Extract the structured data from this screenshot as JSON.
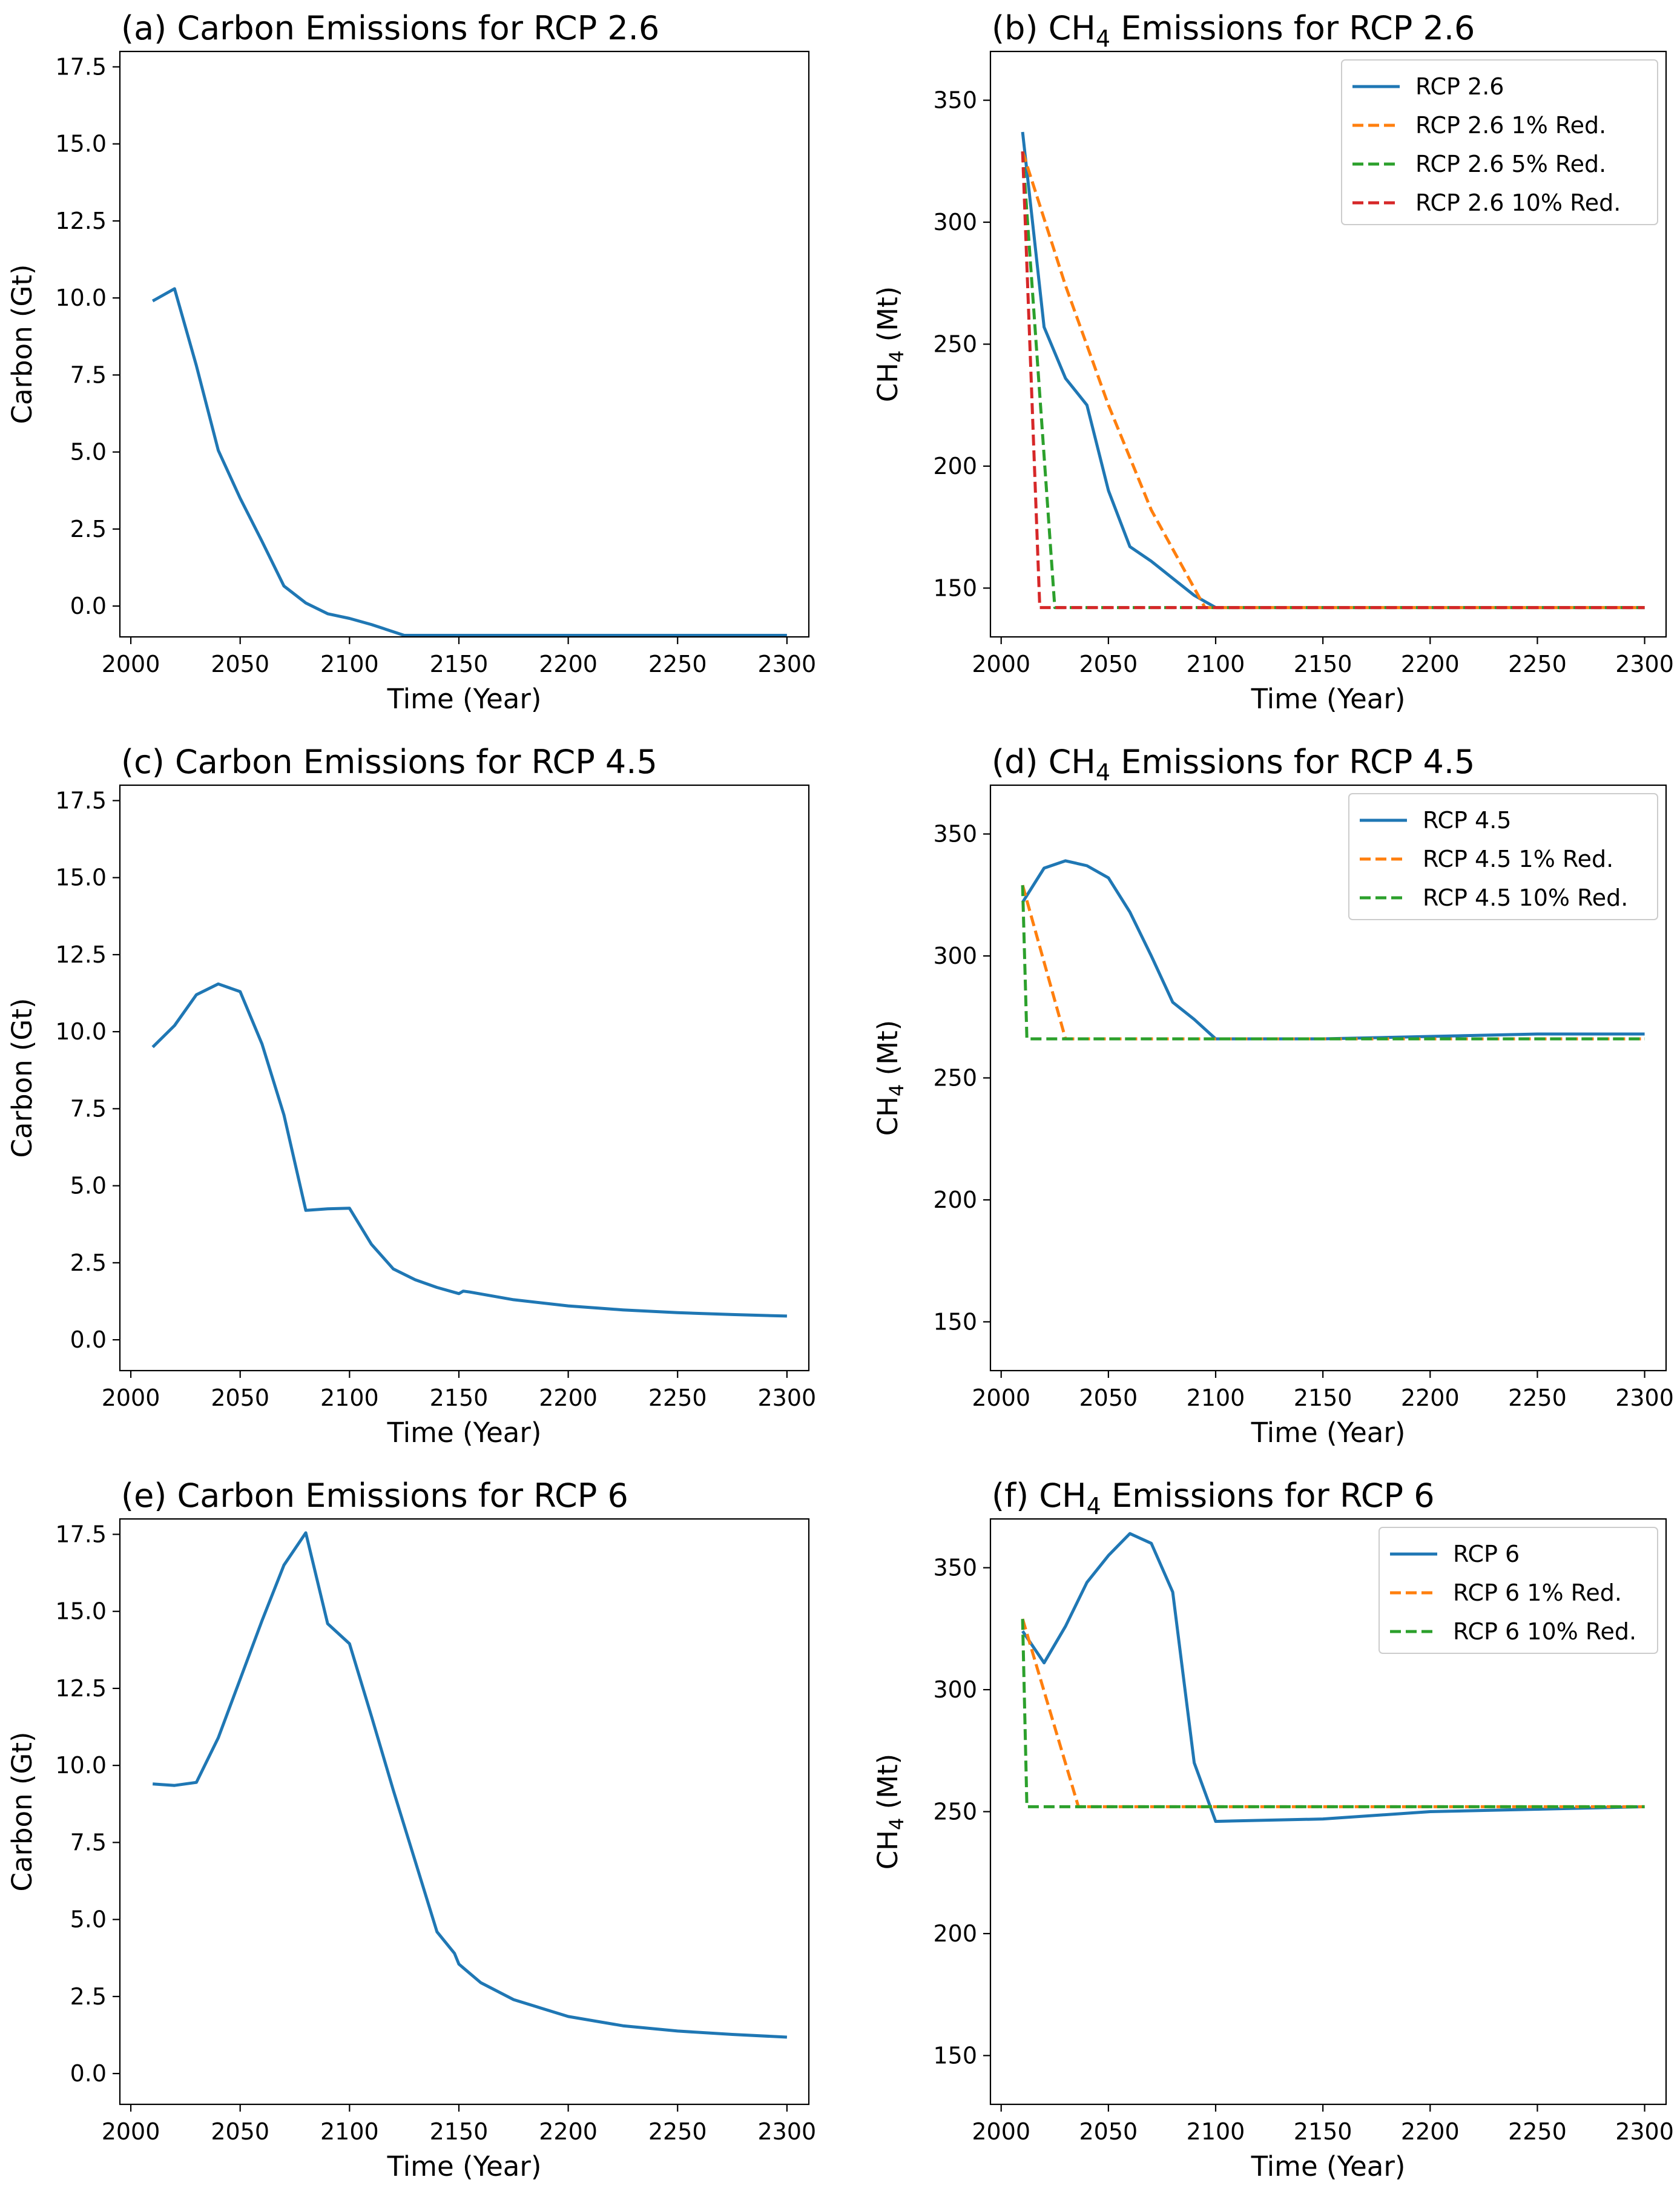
{
  "chart_data": [
    {
      "type": "line",
      "panel": "a",
      "title": "(a) Carbon Emissions for RCP 2.6",
      "title_main": "(a) Carbon Emissions for RCP 2.6",
      "xlabel": "Time (Year)",
      "ylabel": "Carbon (Gt)",
      "xlim": [
        1995,
        2310
      ],
      "ylim": [
        -1.0,
        18.0
      ],
      "xticks": [
        2000,
        2050,
        2100,
        2150,
        2200,
        2250,
        2300
      ],
      "yticks": [
        0.0,
        2.5,
        5.0,
        7.5,
        10.0,
        12.5,
        15.0,
        17.5
      ],
      "ytick_labels": [
        "0.0",
        "2.5",
        "5.0",
        "7.5",
        "10.0",
        "12.5",
        "15.0",
        "17.5"
      ],
      "legend": false,
      "series": [
        {
          "name": "RCP 2.6",
          "color": "#1f77b4",
          "style": "solid",
          "x": [
            2010,
            2020,
            2030,
            2040,
            2050,
            2060,
            2070,
            2080,
            2090,
            2100,
            2110,
            2125,
            2150,
            2200,
            2250,
            2300
          ],
          "y": [
            9.9,
            10.3,
            7.8,
            5.05,
            3.5,
            2.1,
            0.65,
            0.1,
            -0.25,
            -0.4,
            -0.6,
            -0.95,
            -0.95,
            -0.95,
            -0.95,
            -0.95
          ]
        }
      ]
    },
    {
      "type": "line",
      "panel": "b",
      "title": "(b) CH4 Emissions for RCP 2.6",
      "title_main": "(b) CH",
      "title_sub": "4",
      "title_rest": " Emissions for RCP 2.6",
      "xlabel": "Time (Year)",
      "ylabel": "CH4 (Mt)",
      "ylabel_main": "CH",
      "ylabel_sub": "4",
      "ylabel_rest": " (Mt)",
      "xlim": [
        1995,
        2310
      ],
      "ylim": [
        130,
        370
      ],
      "xticks": [
        2000,
        2050,
        2100,
        2150,
        2200,
        2250,
        2300
      ],
      "yticks": [
        150,
        200,
        250,
        300,
        350
      ],
      "ytick_labels": [
        "150",
        "200",
        "250",
        "300",
        "350"
      ],
      "legend": true,
      "legend_position": "upper right",
      "series": [
        {
          "name": "RCP 2.6",
          "color": "#1f77b4",
          "style": "solid",
          "x": [
            2010,
            2020,
            2030,
            2040,
            2050,
            2060,
            2070,
            2080,
            2090,
            2100,
            2150,
            2200,
            2250,
            2300
          ],
          "y": [
            337,
            257,
            236,
            225,
            190,
            167,
            161,
            154,
            147,
            142,
            142,
            142,
            142,
            142
          ]
        },
        {
          "name": "RCP 2.6 1% Red.",
          "color": "#ff7f0e",
          "style": "dashed",
          "x": [
            2010,
            2030,
            2050,
            2070,
            2095,
            2150,
            2200,
            2250,
            2300
          ],
          "y": [
            329,
            274,
            225,
            182,
            142,
            142,
            142,
            142,
            142
          ]
        },
        {
          "name": "RCP 2.6 5% Red.",
          "color": "#2ca02c",
          "style": "dashed",
          "x": [
            2010,
            2025,
            2050,
            2100,
            2150,
            2200,
            2250,
            2300
          ],
          "y": [
            329,
            142,
            142,
            142,
            142,
            142,
            142,
            142
          ]
        },
        {
          "name": "RCP 2.6 10% Red.",
          "color": "#d62728",
          "style": "dashed",
          "x": [
            2010,
            2018,
            2050,
            2100,
            2150,
            2200,
            2250,
            2300
          ],
          "y": [
            329,
            142,
            142,
            142,
            142,
            142,
            142,
            142
          ]
        }
      ]
    },
    {
      "type": "line",
      "panel": "c",
      "title": "(c) Carbon Emissions for RCP 4.5",
      "title_main": "(c) Carbon Emissions for RCP 4.5",
      "xlabel": "Time (Year)",
      "ylabel": "Carbon (Gt)",
      "xlim": [
        1995,
        2310
      ],
      "ylim": [
        -1.0,
        18.0
      ],
      "xticks": [
        2000,
        2050,
        2100,
        2150,
        2200,
        2250,
        2300
      ],
      "yticks": [
        0.0,
        2.5,
        5.0,
        7.5,
        10.0,
        12.5,
        15.0,
        17.5
      ],
      "ytick_labels": [
        "0.0",
        "2.5",
        "5.0",
        "7.5",
        "10.0",
        "12.5",
        "15.0",
        "17.5"
      ],
      "legend": false,
      "series": [
        {
          "name": "RCP 4.5",
          "color": "#1f77b4",
          "style": "solid",
          "x": [
            2010,
            2020,
            2030,
            2040,
            2050,
            2060,
            2070,
            2080,
            2090,
            2100,
            2110,
            2120,
            2130,
            2140,
            2150,
            2152,
            2155,
            2175,
            2200,
            2225,
            2250,
            2275,
            2300
          ],
          "y": [
            9.5,
            10.2,
            11.2,
            11.55,
            11.3,
            9.6,
            7.3,
            4.2,
            4.25,
            4.27,
            3.1,
            2.3,
            1.95,
            1.7,
            1.5,
            1.58,
            1.55,
            1.3,
            1.1,
            0.97,
            0.88,
            0.82,
            0.77
          ]
        }
      ]
    },
    {
      "type": "line",
      "panel": "d",
      "title": "(d) CH4 Emissions for RCP 4.5",
      "title_main": "(d) CH",
      "title_sub": "4",
      "title_rest": " Emissions for RCP 4.5",
      "xlabel": "Time (Year)",
      "ylabel": "CH4 (Mt)",
      "ylabel_main": "CH",
      "ylabel_sub": "4",
      "ylabel_rest": " (Mt)",
      "xlim": [
        1995,
        2310
      ],
      "ylim": [
        130,
        370
      ],
      "xticks": [
        2000,
        2050,
        2100,
        2150,
        2200,
        2250,
        2300
      ],
      "yticks": [
        150,
        200,
        250,
        300,
        350
      ],
      "ytick_labels": [
        "150",
        "200",
        "250",
        "300",
        "350"
      ],
      "legend": true,
      "legend_position": "upper right",
      "series": [
        {
          "name": "RCP 4.5",
          "color": "#1f77b4",
          "style": "solid",
          "x": [
            2010,
            2020,
            2030,
            2040,
            2050,
            2060,
            2070,
            2080,
            2090,
            2100,
            2150,
            2200,
            2250,
            2300
          ],
          "y": [
            322,
            336,
            339,
            337,
            332,
            318,
            300,
            281,
            274,
            266,
            266,
            267,
            268,
            268
          ]
        },
        {
          "name": "RCP 4.5 1% Red.",
          "color": "#ff7f0e",
          "style": "dashed",
          "x": [
            2010,
            2030,
            2050,
            2100,
            2150,
            2200,
            2250,
            2300
          ],
          "y": [
            329,
            266,
            266,
            266,
            266,
            266,
            266,
            266
          ]
        },
        {
          "name": "RCP 4.5 10% Red.",
          "color": "#2ca02c",
          "style": "dashed",
          "x": [
            2010,
            2012,
            2050,
            2100,
            2150,
            2200,
            2250,
            2300
          ],
          "y": [
            329,
            266,
            266,
            266,
            266,
            266,
            266,
            266
          ]
        }
      ]
    },
    {
      "type": "line",
      "panel": "e",
      "title": "(e) Carbon Emissions for RCP 6",
      "title_main": "(e) Carbon Emissions for RCP 6",
      "xlabel": "Time (Year)",
      "ylabel": "Carbon (Gt)",
      "xlim": [
        1995,
        2310
      ],
      "ylim": [
        -1.0,
        18.0
      ],
      "xticks": [
        2000,
        2050,
        2100,
        2150,
        2200,
        2250,
        2300
      ],
      "yticks": [
        0.0,
        2.5,
        5.0,
        7.5,
        10.0,
        12.5,
        15.0,
        17.5
      ],
      "ytick_labels": [
        "0.0",
        "2.5",
        "5.0",
        "7.5",
        "10.0",
        "12.5",
        "15.0",
        "17.5"
      ],
      "legend": false,
      "series": [
        {
          "name": "RCP 6",
          "color": "#1f77b4",
          "style": "solid",
          "x": [
            2010,
            2020,
            2030,
            2040,
            2050,
            2060,
            2070,
            2080,
            2090,
            2100,
            2110,
            2120,
            2130,
            2140,
            2148,
            2150,
            2160,
            2175,
            2200,
            2225,
            2250,
            2275,
            2300
          ],
          "y": [
            9.4,
            9.35,
            9.45,
            10.9,
            12.8,
            14.7,
            16.5,
            17.55,
            14.6,
            13.95,
            11.6,
            9.2,
            6.9,
            4.6,
            3.9,
            3.55,
            2.95,
            2.4,
            1.85,
            1.55,
            1.38,
            1.27,
            1.18
          ]
        }
      ]
    },
    {
      "type": "line",
      "panel": "f",
      "title": "(f) CH4 Emissions for RCP 6",
      "title_main": "(f) CH",
      "title_sub": "4",
      "title_rest": " Emissions for RCP 6",
      "xlabel": "Time (Year)",
      "ylabel": "CH4 (Mt)",
      "ylabel_main": "CH",
      "ylabel_sub": "4",
      "ylabel_rest": " (Mt)",
      "xlim": [
        1995,
        2310
      ],
      "ylim": [
        130,
        370
      ],
      "xticks": [
        2000,
        2050,
        2100,
        2150,
        2200,
        2250,
        2300
      ],
      "yticks": [
        150,
        200,
        250,
        300,
        350
      ],
      "ytick_labels": [
        "150",
        "200",
        "250",
        "300",
        "350"
      ],
      "legend": true,
      "legend_position": "upper right",
      "series": [
        {
          "name": "RCP 6",
          "color": "#1f77b4",
          "style": "solid",
          "x": [
            2010,
            2020,
            2030,
            2040,
            2050,
            2060,
            2070,
            2080,
            2090,
            2100,
            2150,
            2200,
            2250,
            2300
          ],
          "y": [
            324,
            311,
            326,
            344,
            355,
            364,
            360,
            340,
            270,
            246,
            247,
            250,
            251,
            252
          ]
        },
        {
          "name": "RCP 6 1% Red.",
          "color": "#ff7f0e",
          "style": "dashed",
          "x": [
            2010,
            2036,
            2050,
            2100,
            2150,
            2200,
            2250,
            2300
          ],
          "y": [
            329,
            252,
            252,
            252,
            252,
            252,
            252,
            252
          ]
        },
        {
          "name": "RCP 6 10% Red.",
          "color": "#2ca02c",
          "style": "dashed",
          "x": [
            2010,
            2012,
            2050,
            2100,
            2150,
            2200,
            2250,
            2300
          ],
          "y": [
            329,
            252,
            252,
            252,
            252,
            252,
            252,
            252
          ]
        }
      ]
    }
  ]
}
